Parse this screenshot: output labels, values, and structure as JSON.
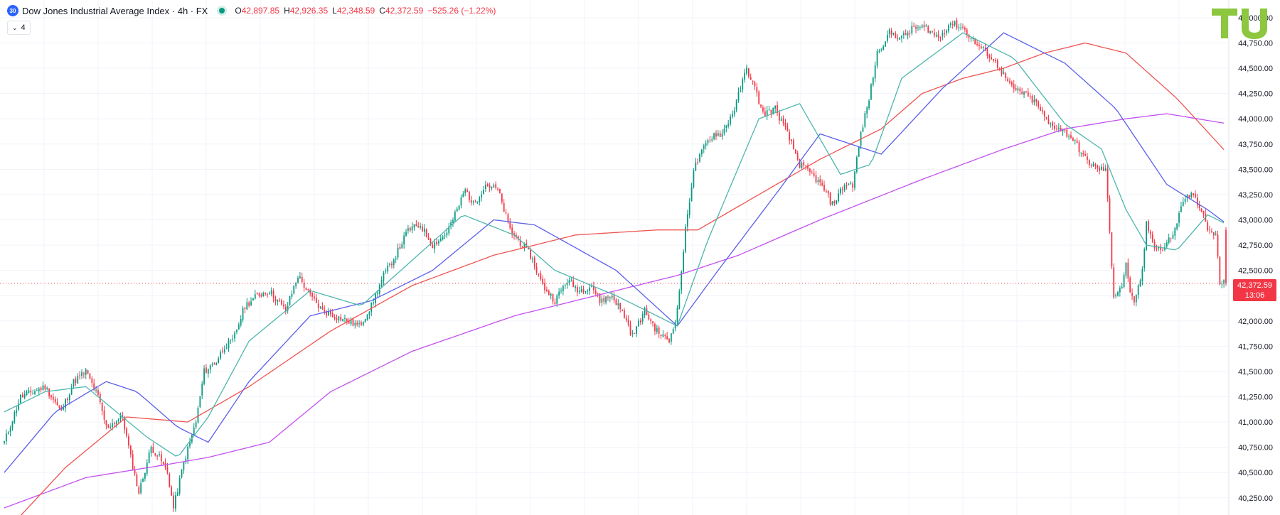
{
  "header": {
    "symbol_badge": "30",
    "title": "Dow Jones Industrial Average Index · 4h · FX",
    "ohlc": [
      {
        "key": "O",
        "value": "42,897.85"
      },
      {
        "key": "H",
        "value": "42,926.35"
      },
      {
        "key": "L",
        "value": "42,348.59"
      },
      {
        "key": "C",
        "value": "42,372.59"
      }
    ],
    "change": "−525.26 (−1.22%)",
    "indicators_count": "4"
  },
  "last_price": {
    "label": "42,372.59",
    "countdown": "13:06"
  },
  "logo": {
    "name": "tu-logo",
    "color": "#8dc63f"
  },
  "colors": {
    "up": "#089981",
    "down": "#f23645",
    "ma_teal": "#4db6ac",
    "ma_blue": "#5b5fe9",
    "ma_red": "#ef5350",
    "ma_violet": "#c34ff0",
    "grid": "#f0f3fa",
    "axis_text": "#131722"
  },
  "chart_data": {
    "type": "candlestick",
    "interval": "4h",
    "ylim": [
      40080,
      45175
    ],
    "yticks": [
      40250,
      40500,
      40750,
      41000,
      41250,
      41500,
      41750,
      42000,
      42250,
      42500,
      42750,
      43000,
      43250,
      43500,
      43750,
      44000,
      44250,
      44500,
      44750,
      45000
    ],
    "ytick_labels": [
      "40,250.00",
      "40,500.00",
      "40,750.00",
      "41,000.00",
      "41,250.00",
      "41,500.00",
      "41,750.00",
      "42,000.00",
      "42,250.00",
      "42,500.00",
      "42,750.00",
      "43,000.00",
      "43,250.00",
      "43,500.00",
      "43,750.00",
      "44,000.00",
      "44,250.00",
      "44,500.00",
      "44,750.00",
      "45,000.00"
    ],
    "close_path": [
      [
        0,
        40800
      ],
      [
        8,
        41250
      ],
      [
        14,
        41300
      ],
      [
        20,
        41350
      ],
      [
        28,
        41100
      ],
      [
        34,
        41400
      ],
      [
        40,
        41500
      ],
      [
        46,
        41250
      ],
      [
        50,
        40950
      ],
      [
        58,
        41050
      ],
      [
        62,
        40650
      ],
      [
        66,
        40300
      ],
      [
        72,
        40750
      ],
      [
        76,
        40650
      ],
      [
        80,
        40500
      ],
      [
        83,
        40150
      ],
      [
        88,
        40600
      ],
      [
        94,
        41000
      ],
      [
        98,
        41500
      ],
      [
        104,
        41600
      ],
      [
        108,
        41750
      ],
      [
        112,
        41800
      ],
      [
        118,
        42150
      ],
      [
        124,
        42250
      ],
      [
        130,
        42300
      ],
      [
        138,
        42100
      ],
      [
        144,
        42450
      ],
      [
        150,
        42250
      ],
      [
        156,
        42100
      ],
      [
        162,
        42050
      ],
      [
        168,
        42000
      ],
      [
        174,
        41950
      ],
      [
        180,
        42150
      ],
      [
        186,
        42450
      ],
      [
        192,
        42650
      ],
      [
        198,
        42900
      ],
      [
        204,
        42950
      ],
      [
        210,
        42750
      ],
      [
        216,
        42850
      ],
      [
        220,
        43000
      ],
      [
        226,
        43300
      ],
      [
        230,
        43150
      ],
      [
        236,
        43350
      ],
      [
        242,
        43300
      ],
      [
        248,
        42900
      ],
      [
        252,
        42800
      ],
      [
        258,
        42650
      ],
      [
        264,
        42350
      ],
      [
        270,
        42200
      ],
      [
        276,
        42400
      ],
      [
        282,
        42300
      ],
      [
        288,
        42350
      ],
      [
        292,
        42200
      ],
      [
        298,
        42250
      ],
      [
        304,
        42050
      ],
      [
        308,
        41850
      ],
      [
        314,
        42100
      ],
      [
        320,
        41900
      ],
      [
        326,
        41800
      ],
      [
        330,
        42100
      ],
      [
        334,
        42900
      ],
      [
        338,
        43500
      ],
      [
        344,
        43750
      ],
      [
        348,
        43850
      ],
      [
        352,
        43850
      ],
      [
        358,
        44100
      ],
      [
        364,
        44500
      ],
      [
        368,
        44300
      ],
      [
        372,
        44050
      ],
      [
        378,
        44100
      ],
      [
        384,
        43850
      ],
      [
        390,
        43550
      ],
      [
        396,
        43450
      ],
      [
        402,
        43300
      ],
      [
        406,
        43150
      ],
      [
        412,
        43350
      ],
      [
        416,
        43350
      ],
      [
        420,
        43850
      ],
      [
        424,
        44200
      ],
      [
        428,
        44650
      ],
      [
        434,
        44850
      ],
      [
        440,
        44800
      ],
      [
        446,
        44900
      ],
      [
        452,
        44900
      ],
      [
        458,
        44800
      ],
      [
        464,
        44950
      ],
      [
        470,
        44900
      ],
      [
        476,
        44750
      ],
      [
        482,
        44650
      ],
      [
        488,
        44500
      ],
      [
        494,
        44300
      ],
      [
        500,
        44250
      ],
      [
        506,
        44150
      ],
      [
        512,
        43950
      ],
      [
        518,
        43900
      ],
      [
        524,
        43800
      ],
      [
        530,
        43600
      ],
      [
        536,
        43500
      ],
      [
        540,
        43500
      ],
      [
        544,
        42250
      ],
      [
        548,
        42350
      ],
      [
        550,
        42550
      ],
      [
        552,
        42300
      ],
      [
        554,
        42150
      ],
      [
        558,
        42500
      ],
      [
        560,
        42950
      ],
      [
        564,
        42750
      ],
      [
        568,
        42700
      ],
      [
        574,
        42900
      ],
      [
        578,
        43200
      ],
      [
        582,
        43250
      ],
      [
        586,
        43150
      ],
      [
        590,
        42900
      ],
      [
        594,
        42850
      ],
      [
        596,
        42372.59
      ]
    ],
    "ma_teal": [
      [
        0,
        41100
      ],
      [
        20,
        41300
      ],
      [
        40,
        41350
      ],
      [
        55,
        41100
      ],
      [
        70,
        40850
      ],
      [
        85,
        40650
      ],
      [
        100,
        41050
      ],
      [
        120,
        41800
      ],
      [
        150,
        42300
      ],
      [
        175,
        42150
      ],
      [
        200,
        42600
      ],
      [
        225,
        43050
      ],
      [
        250,
        42850
      ],
      [
        270,
        42500
      ],
      [
        300,
        42250
      ],
      [
        330,
        41950
      ],
      [
        345,
        42800
      ],
      [
        370,
        44000
      ],
      [
        390,
        44150
      ],
      [
        410,
        43450
      ],
      [
        425,
        43550
      ],
      [
        440,
        44400
      ],
      [
        470,
        44850
      ],
      [
        495,
        44600
      ],
      [
        520,
        43950
      ],
      [
        538,
        43700
      ],
      [
        550,
        43100
      ],
      [
        560,
        42750
      ],
      [
        575,
        42700
      ],
      [
        590,
        43050
      ],
      [
        600,
        42950
      ]
    ],
    "ma_blue": [
      [
        0,
        40500
      ],
      [
        25,
        41100
      ],
      [
        50,
        41400
      ],
      [
        65,
        41300
      ],
      [
        85,
        40950
      ],
      [
        100,
        40800
      ],
      [
        120,
        41400
      ],
      [
        150,
        42050
      ],
      [
        180,
        42200
      ],
      [
        210,
        42500
      ],
      [
        240,
        43000
      ],
      [
        260,
        42950
      ],
      [
        300,
        42500
      ],
      [
        330,
        41950
      ],
      [
        350,
        42500
      ],
      [
        380,
        43300
      ],
      [
        400,
        43850
      ],
      [
        430,
        43650
      ],
      [
        460,
        44300
      ],
      [
        490,
        44850
      ],
      [
        520,
        44550
      ],
      [
        545,
        44100
      ],
      [
        570,
        43350
      ],
      [
        590,
        43100
      ],
      [
        600,
        42950
      ]
    ],
    "ma_red": [
      [
        0,
        39900
      ],
      [
        30,
        40550
      ],
      [
        60,
        41050
      ],
      [
        90,
        41000
      ],
      [
        120,
        41350
      ],
      [
        160,
        41900
      ],
      [
        200,
        42350
      ],
      [
        240,
        42650
      ],
      [
        280,
        42850
      ],
      [
        320,
        42900
      ],
      [
        340,
        42900
      ],
      [
        370,
        43250
      ],
      [
        400,
        43600
      ],
      [
        430,
        43900
      ],
      [
        450,
        44250
      ],
      [
        470,
        44400
      ],
      [
        490,
        44500
      ],
      [
        510,
        44650
      ],
      [
        530,
        44750
      ],
      [
        550,
        44650
      ],
      [
        575,
        44200
      ],
      [
        600,
        43650
      ]
    ],
    "ma_violet": [
      [
        0,
        40150
      ],
      [
        40,
        40450
      ],
      [
        80,
        40580
      ],
      [
        100,
        40650
      ],
      [
        130,
        40800
      ],
      [
        160,
        41300
      ],
      [
        200,
        41700
      ],
      [
        250,
        42050
      ],
      [
        300,
        42300
      ],
      [
        330,
        42450
      ],
      [
        360,
        42650
      ],
      [
        400,
        43000
      ],
      [
        450,
        43400
      ],
      [
        490,
        43700
      ],
      [
        520,
        43900
      ],
      [
        550,
        44000
      ],
      [
        570,
        44050
      ],
      [
        600,
        43950
      ]
    ]
  }
}
